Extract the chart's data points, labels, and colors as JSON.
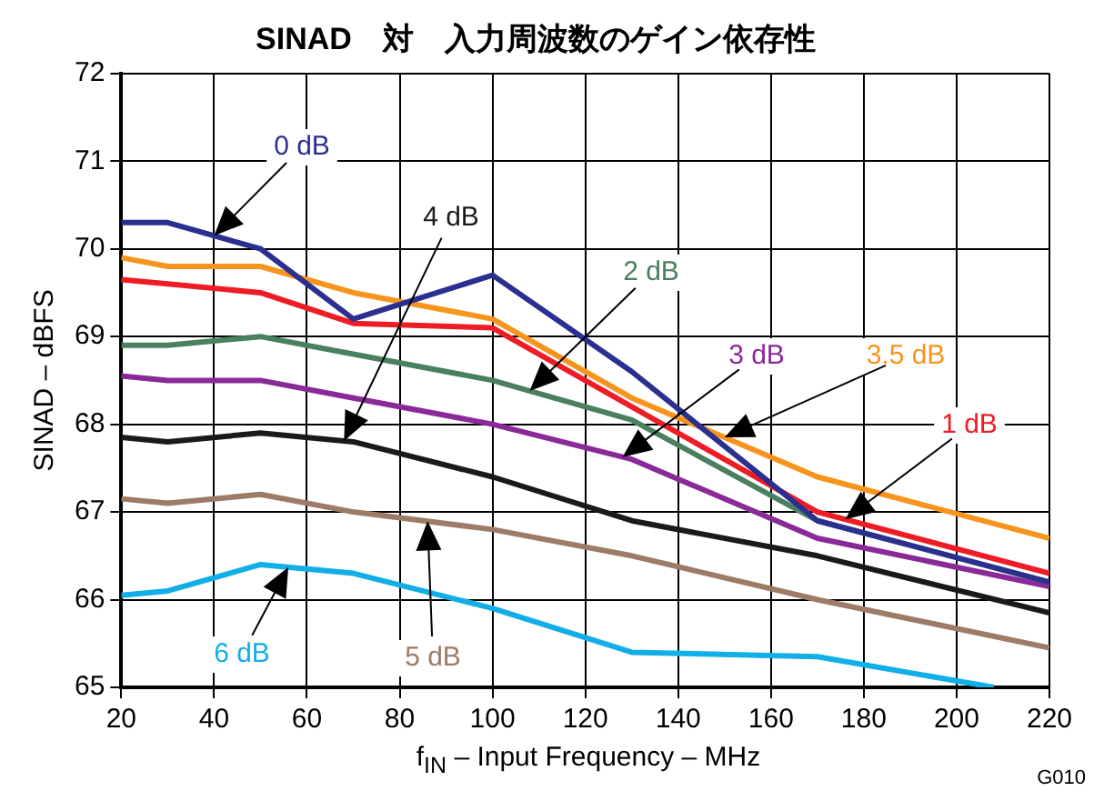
{
  "chart_data": {
    "type": "line",
    "title": "SINAD　対　入力周波数のゲイン依存性",
    "xlabel": "f$_{IN}$ – Input Frequency – MHz",
    "ylabel": "SINAD – dBFS",
    "annotations": [
      "G010"
    ],
    "x": [
      20,
      30,
      50,
      70,
      100,
      130,
      170,
      220
    ],
    "xlim": [
      20,
      220
    ],
    "xticks": [
      20,
      40,
      60,
      80,
      100,
      120,
      140,
      160,
      180,
      200,
      220
    ],
    "ylim": [
      65,
      72
    ],
    "yticks": [
      65,
      66,
      67,
      68,
      69,
      70,
      71,
      72
    ],
    "grid": true,
    "legend": false,
    "marker": "none",
    "line_style": "solid",
    "series": [
      {
        "name": "0 dB",
        "color": "#2b2f8f",
        "values": [
          70.3,
          70.3,
          70.0,
          69.2,
          69.7,
          68.6,
          66.9,
          66.2
        ]
      },
      {
        "name": "4 dB",
        "color": "#1a1a1a",
        "values": [
          67.85,
          67.8,
          67.9,
          67.8,
          67.4,
          66.9,
          66.5,
          65.85
        ]
      },
      {
        "name": "2 dB",
        "color": "#4a8060",
        "values": [
          68.9,
          68.9,
          69.0,
          68.8,
          68.5,
          68.05,
          66.9,
          66.2
        ]
      },
      {
        "name": "3 dB",
        "color": "#8a2a98",
        "values": [
          68.55,
          68.5,
          68.5,
          68.3,
          68.0,
          67.6,
          66.7,
          66.15
        ]
      },
      {
        "name": "3.5 dB",
        "color": "#f7941d",
        "values": [
          69.9,
          69.8,
          69.8,
          69.5,
          69.2,
          68.3,
          67.4,
          66.7
        ]
      },
      {
        "name": "1 dB",
        "color": "#ee1c25",
        "values": [
          69.65,
          69.6,
          69.5,
          69.15,
          69.1,
          68.2,
          67.0,
          66.3
        ]
      },
      {
        "name": "6 dB",
        "color": "#12aee8",
        "x": [
          20,
          30,
          50,
          70,
          100,
          130,
          170,
          208
        ],
        "values": [
          66.05,
          66.1,
          66.4,
          66.3,
          65.9,
          65.4,
          65.35,
          65.0
        ]
      },
      {
        "name": "5 dB",
        "color": "#9c7b67",
        "values": [
          67.15,
          67.1,
          67.2,
          67.0,
          66.8,
          66.5,
          66.0,
          65.45
        ]
      }
    ]
  }
}
